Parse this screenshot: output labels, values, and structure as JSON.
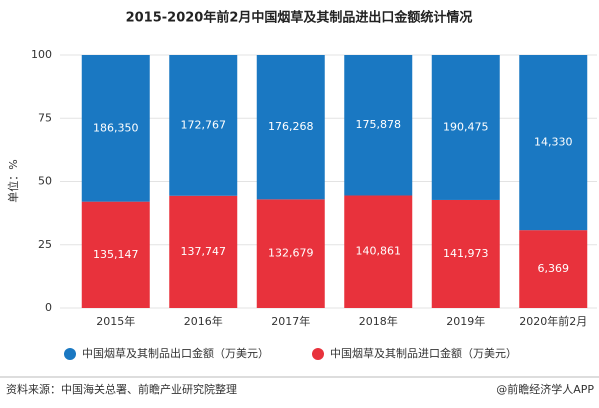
{
  "chart_data": {
    "type": "bar",
    "stacked": "percent",
    "title": "2015-2020年前2月中国烟草及其制品进出口金额统计情况",
    "ylabel": "单位：%",
    "categories": [
      "2015年",
      "2016年",
      "2017年",
      "2018年",
      "2019年",
      "2020年前2月"
    ],
    "series": [
      {
        "name": "中国烟草及其制品进口金额（万美元）",
        "color": "#e8323c",
        "values": [
          135147,
          137747,
          132679,
          140861,
          141973,
          6369
        ],
        "value_labels": [
          "135,147",
          "137,747",
          "132,679",
          "140,861",
          "141,973",
          "6,369"
        ]
      },
      {
        "name": "中国烟草及其制品出口金额（万美元）",
        "color": "#1a78c2",
        "values": [
          186350,
          172767,
          176268,
          175878,
          190475,
          14330
        ],
        "value_labels": [
          "186,350",
          "172,767",
          "176,268",
          "175,878",
          "190,475",
          "14,330"
        ]
      }
    ],
    "ylim": [
      0,
      100
    ],
    "yticks": [
      0,
      25,
      50,
      75,
      100
    ],
    "grid": true,
    "source": "资料来源：中国海关总署、前瞻产业研究院整理",
    "credit": "@前瞻经济学人APP"
  }
}
